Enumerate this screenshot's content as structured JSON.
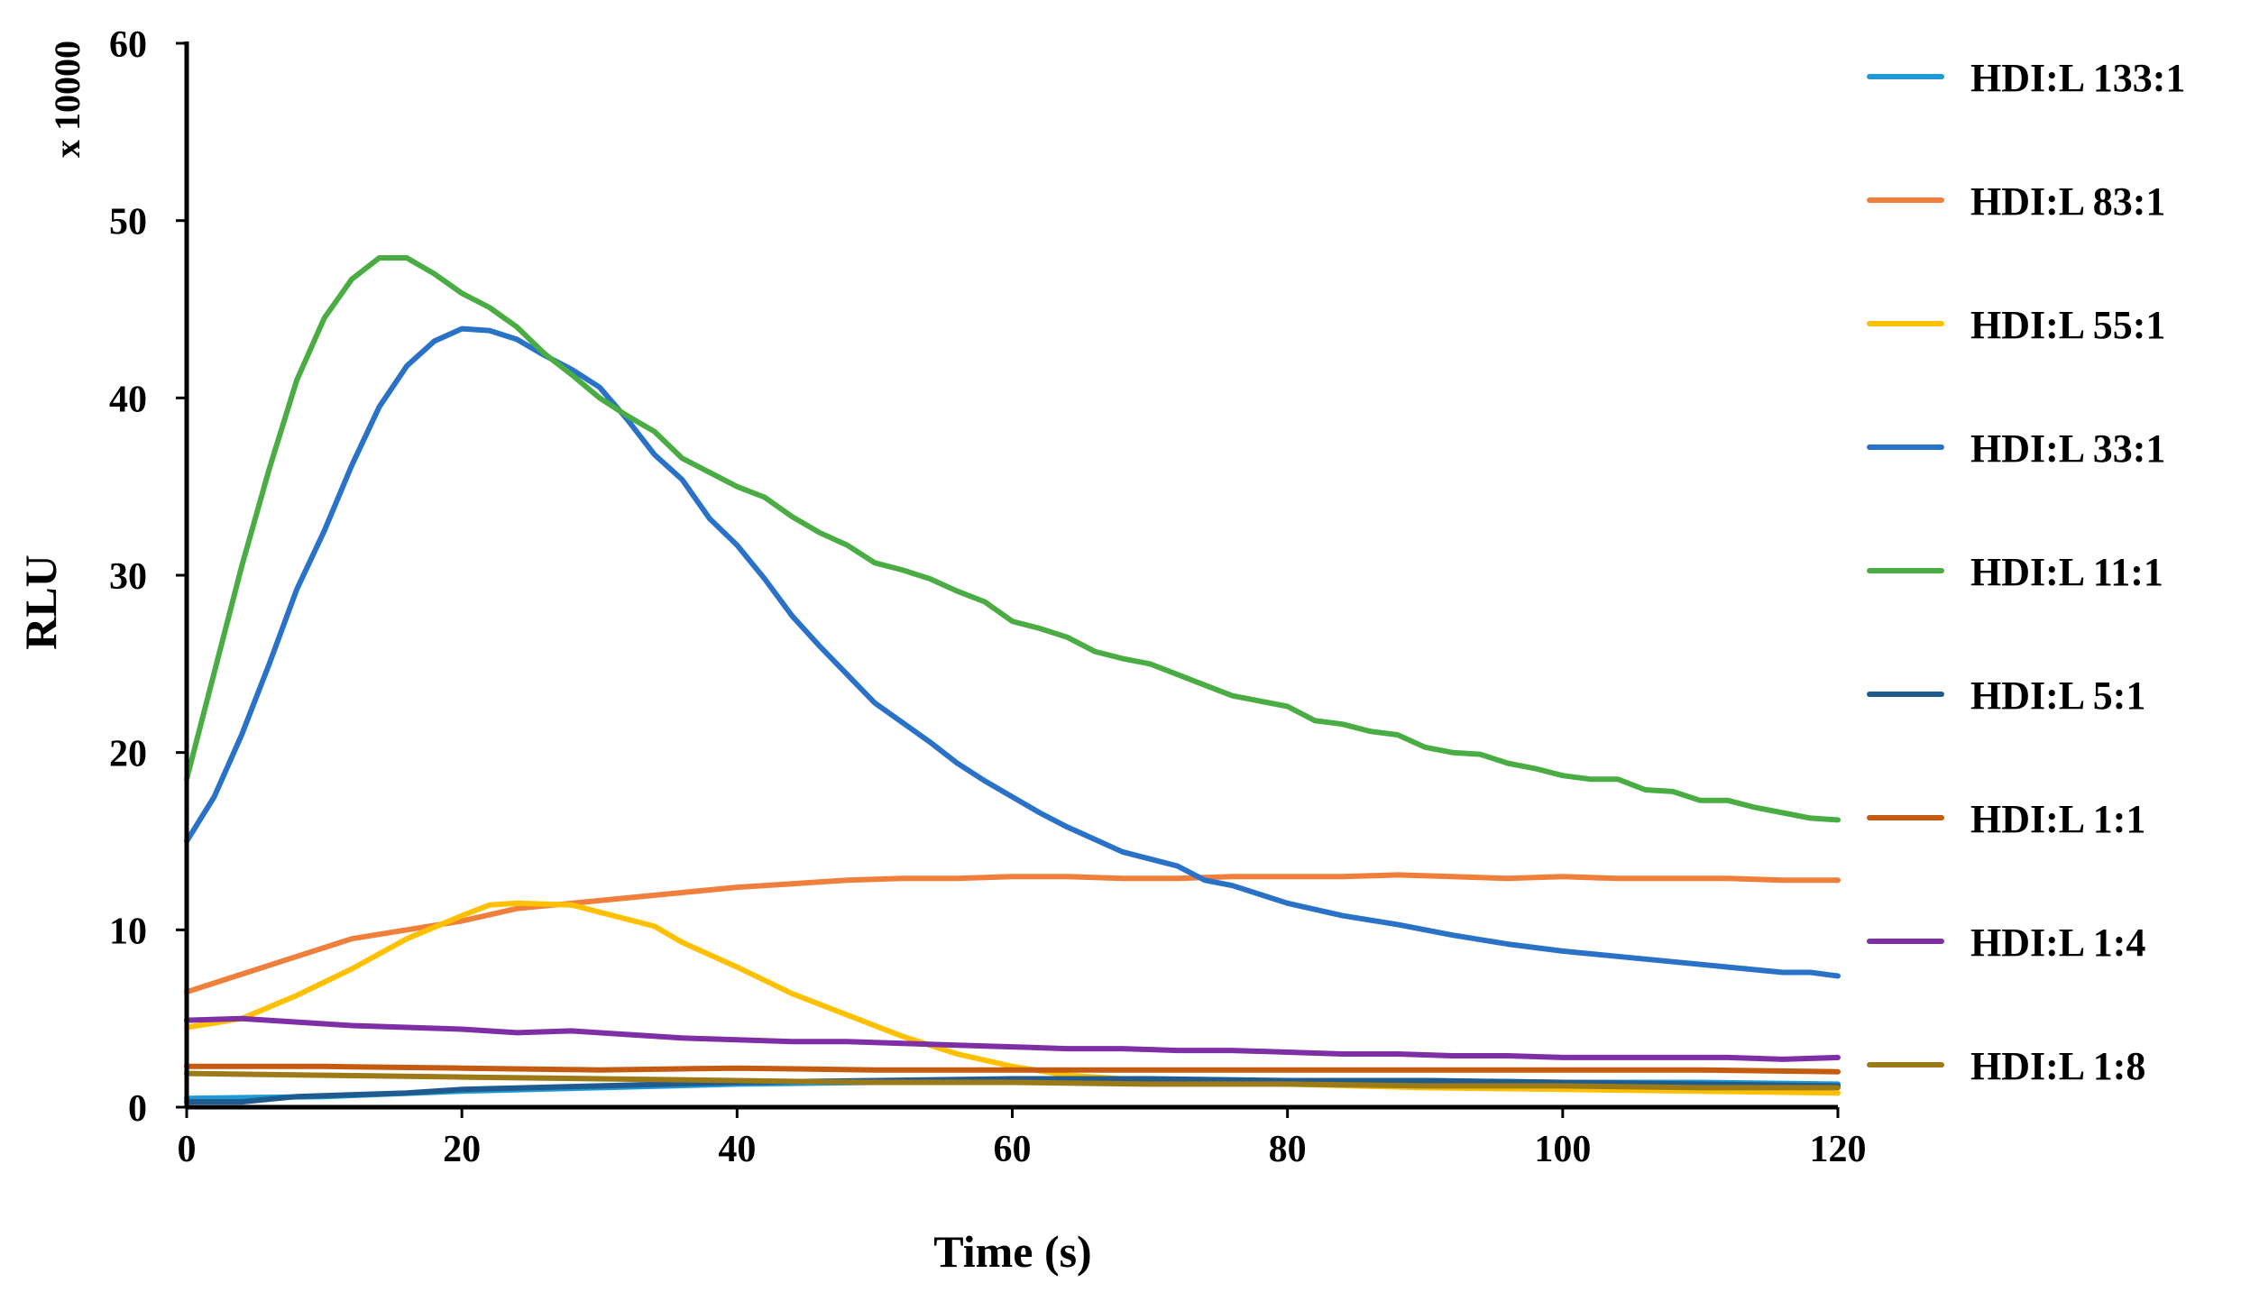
{
  "chart_data": {
    "type": "line",
    "title": "",
    "xlabel": "Time (s)",
    "ylabel": "RLU",
    "y_multiplier_label": "x 10000",
    "xlim": [
      0,
      120
    ],
    "ylim": [
      0,
      60
    ],
    "x_ticks": [
      0,
      20,
      40,
      60,
      80,
      100,
      120
    ],
    "y_ticks": [
      0,
      10,
      20,
      30,
      40,
      50,
      60
    ],
    "grid": false,
    "legend_position": "right",
    "series": [
      {
        "name": "HDI:L 133:1",
        "color": "#1f9ad6",
        "points": [
          [
            0,
            0.5
          ],
          [
            10,
            0.6
          ],
          [
            20,
            0.9
          ],
          [
            30,
            1.1
          ],
          [
            40,
            1.3
          ],
          [
            50,
            1.4
          ],
          [
            60,
            1.5
          ],
          [
            70,
            1.5
          ],
          [
            80,
            1.5
          ],
          [
            90,
            1.5
          ],
          [
            100,
            1.4
          ],
          [
            110,
            1.4
          ],
          [
            120,
            1.3
          ]
        ]
      },
      {
        "name": "HDI:L 83:1",
        "color": "#f07f3c",
        "points": [
          [
            0,
            6.5
          ],
          [
            4,
            7.5
          ],
          [
            8,
            8.5
          ],
          [
            12,
            9.5
          ],
          [
            16,
            10
          ],
          [
            20,
            10.5
          ],
          [
            24,
            11.2
          ],
          [
            28,
            11.5
          ],
          [
            32,
            11.8
          ],
          [
            36,
            12.1
          ],
          [
            40,
            12.4
          ],
          [
            44,
            12.6
          ],
          [
            48,
            12.8
          ],
          [
            52,
            12.9
          ],
          [
            56,
            12.9
          ],
          [
            60,
            13
          ],
          [
            64,
            13
          ],
          [
            68,
            12.9
          ],
          [
            72,
            12.9
          ],
          [
            76,
            13
          ],
          [
            80,
            13
          ],
          [
            84,
            13
          ],
          [
            88,
            13.1
          ],
          [
            92,
            13
          ],
          [
            96,
            12.9
          ],
          [
            100,
            13
          ],
          [
            104,
            12.9
          ],
          [
            108,
            12.9
          ],
          [
            112,
            12.9
          ],
          [
            116,
            12.8
          ],
          [
            120,
            12.8
          ]
        ]
      },
      {
        "name": "HDI:L 55:1",
        "color": "#ffc000",
        "points": [
          [
            0,
            4.5
          ],
          [
            4,
            5
          ],
          [
            8,
            6.3
          ],
          [
            12,
            7.8
          ],
          [
            16,
            9.5
          ],
          [
            20,
            10.8
          ],
          [
            22,
            11.4
          ],
          [
            24,
            11.5
          ],
          [
            28,
            11.4
          ],
          [
            30,
            11
          ],
          [
            34,
            10.2
          ],
          [
            36,
            9.3
          ],
          [
            40,
            7.9
          ],
          [
            44,
            6.4
          ],
          [
            48,
            5.2
          ],
          [
            52,
            4
          ],
          [
            56,
            3
          ],
          [
            60,
            2.3
          ],
          [
            64,
            1.8
          ],
          [
            70,
            1.5
          ],
          [
            80,
            1.3
          ],
          [
            90,
            1.1
          ],
          [
            100,
            1
          ],
          [
            110,
            0.9
          ],
          [
            120,
            0.8
          ]
        ]
      },
      {
        "name": "HDI:L 33:1",
        "color": "#2a72c8",
        "points": [
          [
            0,
            15
          ],
          [
            2,
            17.5
          ],
          [
            4,
            21
          ],
          [
            6,
            25
          ],
          [
            8,
            29.2
          ],
          [
            10,
            32.5
          ],
          [
            12,
            36.2
          ],
          [
            14,
            39.5
          ],
          [
            16,
            41.8
          ],
          [
            18,
            43.2
          ],
          [
            20,
            43.9
          ],
          [
            22,
            43.8
          ],
          [
            24,
            43.3
          ],
          [
            26,
            42.4
          ],
          [
            28,
            41.6
          ],
          [
            30,
            40.6
          ],
          [
            32,
            38.8
          ],
          [
            34,
            36.8
          ],
          [
            36,
            35.4
          ],
          [
            38,
            33.2
          ],
          [
            40,
            31.7
          ],
          [
            42,
            29.8
          ],
          [
            44,
            27.7
          ],
          [
            46,
            26
          ],
          [
            48,
            24.4
          ],
          [
            50,
            22.8
          ],
          [
            52,
            21.7
          ],
          [
            54,
            20.6
          ],
          [
            56,
            19.4
          ],
          [
            58,
            18.4
          ],
          [
            60,
            17.5
          ],
          [
            62,
            16.6
          ],
          [
            64,
            15.8
          ],
          [
            66,
            15.1
          ],
          [
            68,
            14.4
          ],
          [
            70,
            14
          ],
          [
            72,
            13.6
          ],
          [
            74,
            12.8
          ],
          [
            76,
            12.5
          ],
          [
            78,
            12
          ],
          [
            80,
            11.5
          ],
          [
            84,
            10.8
          ],
          [
            88,
            10.3
          ],
          [
            92,
            9.7
          ],
          [
            96,
            9.2
          ],
          [
            100,
            8.8
          ],
          [
            104,
            8.5
          ],
          [
            108,
            8.2
          ],
          [
            112,
            7.9
          ],
          [
            116,
            7.6
          ],
          [
            118,
            7.6
          ],
          [
            120,
            7.4
          ]
        ]
      },
      {
        "name": "HDI:L 11:1",
        "color": "#4aad44",
        "points": [
          [
            0,
            18.5
          ],
          [
            2,
            24.5
          ],
          [
            4,
            30.5
          ],
          [
            6,
            36
          ],
          [
            8,
            41
          ],
          [
            10,
            44.5
          ],
          [
            12,
            46.7
          ],
          [
            14,
            47.9
          ],
          [
            16,
            47.9
          ],
          [
            18,
            47
          ],
          [
            20,
            45.9
          ],
          [
            22,
            45.1
          ],
          [
            24,
            44
          ],
          [
            26,
            42.5
          ],
          [
            28,
            41.3
          ],
          [
            30,
            40
          ],
          [
            32,
            39
          ],
          [
            34,
            38.1
          ],
          [
            36,
            36.6
          ],
          [
            38,
            35.8
          ],
          [
            40,
            35
          ],
          [
            42,
            34.4
          ],
          [
            44,
            33.3
          ],
          [
            46,
            32.4
          ],
          [
            48,
            31.7
          ],
          [
            50,
            30.7
          ],
          [
            52,
            30.3
          ],
          [
            54,
            29.8
          ],
          [
            56,
            29.1
          ],
          [
            58,
            28.5
          ],
          [
            60,
            27.4
          ],
          [
            62,
            27
          ],
          [
            64,
            26.5
          ],
          [
            66,
            25.7
          ],
          [
            68,
            25.3
          ],
          [
            70,
            25
          ],
          [
            72,
            24.4
          ],
          [
            74,
            23.8
          ],
          [
            76,
            23.2
          ],
          [
            78,
            22.9
          ],
          [
            80,
            22.6
          ],
          [
            82,
            21.8
          ],
          [
            84,
            21.6
          ],
          [
            86,
            21.2
          ],
          [
            88,
            21
          ],
          [
            90,
            20.3
          ],
          [
            92,
            20
          ],
          [
            94,
            19.9
          ],
          [
            96,
            19.4
          ],
          [
            98,
            19.1
          ],
          [
            100,
            18.7
          ],
          [
            102,
            18.5
          ],
          [
            104,
            18.5
          ],
          [
            106,
            17.9
          ],
          [
            108,
            17.8
          ],
          [
            110,
            17.3
          ],
          [
            112,
            17.3
          ],
          [
            114,
            16.9
          ],
          [
            116,
            16.6
          ],
          [
            118,
            16.3
          ],
          [
            120,
            16.2
          ]
        ]
      },
      {
        "name": "HDI:L 5:1",
        "color": "#1f5b8f",
        "points": [
          [
            0,
            0.3
          ],
          [
            4,
            0.3
          ],
          [
            8,
            0.6
          ],
          [
            12,
            0.7
          ],
          [
            16,
            0.8
          ],
          [
            20,
            1
          ],
          [
            30,
            1.2
          ],
          [
            40,
            1.4
          ],
          [
            50,
            1.5
          ],
          [
            60,
            1.6
          ],
          [
            70,
            1.6
          ],
          [
            80,
            1.5
          ],
          [
            90,
            1.5
          ],
          [
            100,
            1.4
          ],
          [
            110,
            1.3
          ],
          [
            120,
            1.2
          ]
        ]
      },
      {
        "name": "HDI:L 1:1",
        "color": "#c55a11",
        "points": [
          [
            0,
            2.3
          ],
          [
            4,
            2.3
          ],
          [
            10,
            2.3
          ],
          [
            20,
            2.2
          ],
          [
            30,
            2.1
          ],
          [
            40,
            2.2
          ],
          [
            50,
            2.1
          ],
          [
            60,
            2.1
          ],
          [
            70,
            2.1
          ],
          [
            80,
            2.1
          ],
          [
            90,
            2.1
          ],
          [
            100,
            2.1
          ],
          [
            110,
            2.1
          ],
          [
            120,
            2
          ]
        ]
      },
      {
        "name": "HDI:L 1:4",
        "color": "#7f2fa5",
        "points": [
          [
            0,
            4.9
          ],
          [
            4,
            5
          ],
          [
            8,
            4.8
          ],
          [
            12,
            4.6
          ],
          [
            16,
            4.5
          ],
          [
            20,
            4.4
          ],
          [
            24,
            4.2
          ],
          [
            28,
            4.3
          ],
          [
            32,
            4.1
          ],
          [
            36,
            3.9
          ],
          [
            40,
            3.8
          ],
          [
            44,
            3.7
          ],
          [
            48,
            3.7
          ],
          [
            52,
            3.6
          ],
          [
            56,
            3.5
          ],
          [
            60,
            3.4
          ],
          [
            64,
            3.3
          ],
          [
            68,
            3.3
          ],
          [
            72,
            3.2
          ],
          [
            76,
            3.2
          ],
          [
            80,
            3.1
          ],
          [
            84,
            3
          ],
          [
            88,
            3
          ],
          [
            92,
            2.9
          ],
          [
            96,
            2.9
          ],
          [
            100,
            2.8
          ],
          [
            104,
            2.8
          ],
          [
            108,
            2.8
          ],
          [
            112,
            2.8
          ],
          [
            116,
            2.7
          ],
          [
            120,
            2.8
          ]
        ]
      },
      {
        "name": "HDI:L 1:8",
        "color": "#9c7a17",
        "points": [
          [
            0,
            1.9
          ],
          [
            10,
            1.8
          ],
          [
            20,
            1.7
          ],
          [
            30,
            1.6
          ],
          [
            40,
            1.5
          ],
          [
            50,
            1.4
          ],
          [
            60,
            1.4
          ],
          [
            70,
            1.3
          ],
          [
            80,
            1.3
          ],
          [
            90,
            1.2
          ],
          [
            100,
            1.2
          ],
          [
            110,
            1.1
          ],
          [
            120,
            1.1
          ]
        ]
      }
    ]
  }
}
